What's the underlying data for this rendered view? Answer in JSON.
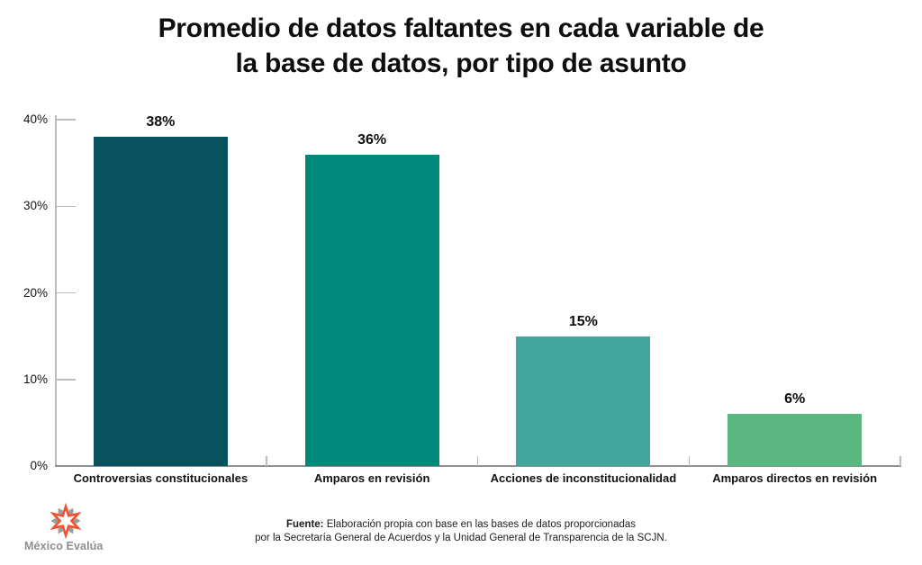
{
  "title": {
    "line1": "Promedio de datos faltantes en cada variable de",
    "line2": "la base de datos, por tipo de asunto"
  },
  "chart_data": {
    "type": "bar",
    "title": "Promedio de datos faltantes en cada variable de la base de datos, por tipo de asunto",
    "categories": [
      "Controversias constitucionales",
      "Amparos en revisión",
      "Acciones de inconstitucionalidad",
      "Amparos directos en revisión"
    ],
    "values": [
      38,
      36,
      15,
      6
    ],
    "value_labels": [
      "38%",
      "36%",
      "15%",
      "6%"
    ],
    "bar_colors": [
      "#07525D",
      "#00887B",
      "#43A59E",
      "#59B77F"
    ],
    "xlabel": "",
    "ylabel": "",
    "ylim": [
      0,
      40
    ],
    "ytick_values": [
      0,
      10,
      20,
      30,
      40
    ],
    "ytick_labels": [
      "0%",
      "10%",
      "20%",
      "30%",
      "40%"
    ],
    "grid": false,
    "legend_position": "none"
  },
  "footer": {
    "source_label": "Fuente:",
    "source_line1": "Elaboración propia con base en las bases de datos proporcionadas",
    "source_line2": "por la Secretaría General de Acuerdos y la Unidad General de Transparencia de la SCJN.",
    "logo_text": "México Evalúa",
    "logo_icon": "starburst-logo-icon",
    "logo_orange": "#F0522F",
    "logo_gray": "#9B9B9B"
  }
}
